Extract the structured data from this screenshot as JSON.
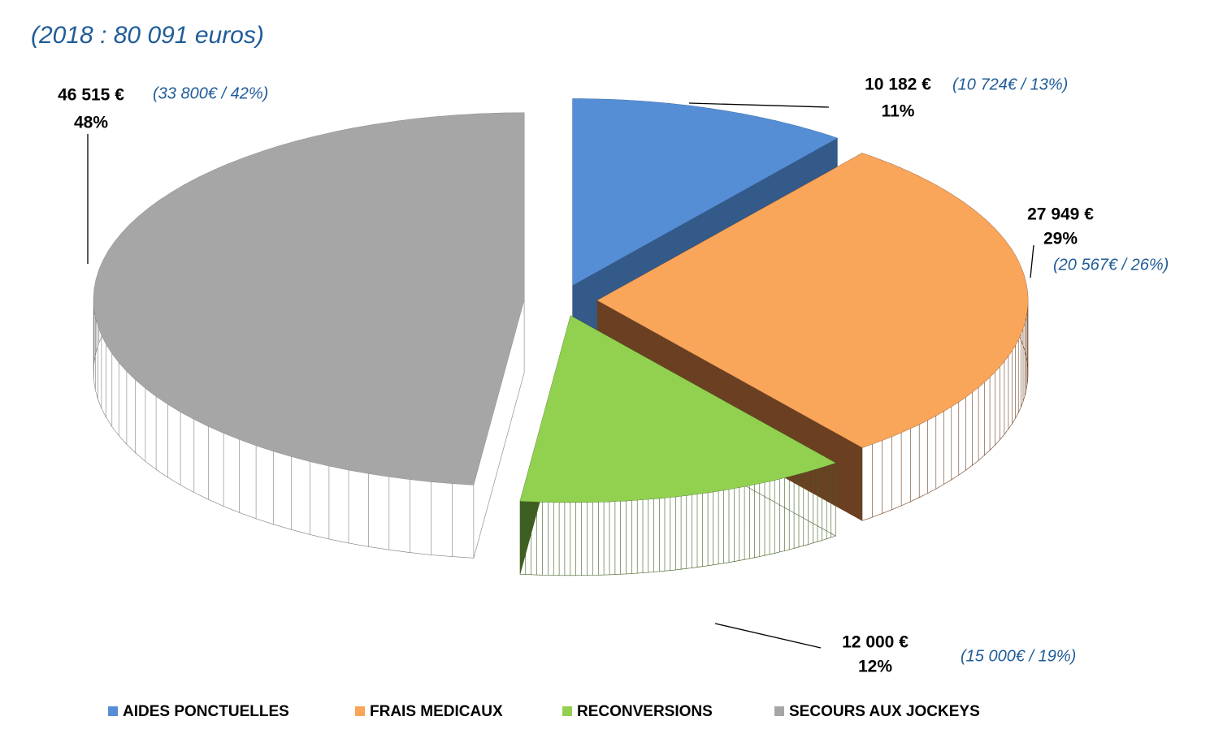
{
  "chart_data": {
    "type": "pie",
    "subtitle": "(2018 : 80 091 euros)",
    "categories": [
      "AIDES PONCTUELLES",
      "FRAIS MEDICAUX",
      "RECONVERSIONS",
      "SECOURS AUX JOCKEYS"
    ],
    "values": [
      10182,
      27949,
      12000,
      46515
    ],
    "value_labels": [
      "10 182 €",
      "27 949 €",
      "12 000 €",
      "46 515 €"
    ],
    "percentages": [
      11,
      29,
      12,
      48
    ],
    "percent_labels": [
      "11%",
      "29%",
      "12%",
      "48%"
    ],
    "annotations": [
      "(10 724€ / 13%)",
      "(20 567€  / 26%)",
      "(15 000€  / 19%)",
      "(33 800€ / 42%)"
    ],
    "colors": [
      "#558ed5",
      "#f9a55a",
      "#92d050",
      "#a6a6a6"
    ],
    "side_colors": [
      "#345a8a",
      "#6b4022",
      "#3e5f21",
      "#7f7f7f"
    ],
    "legend": "bottom"
  }
}
